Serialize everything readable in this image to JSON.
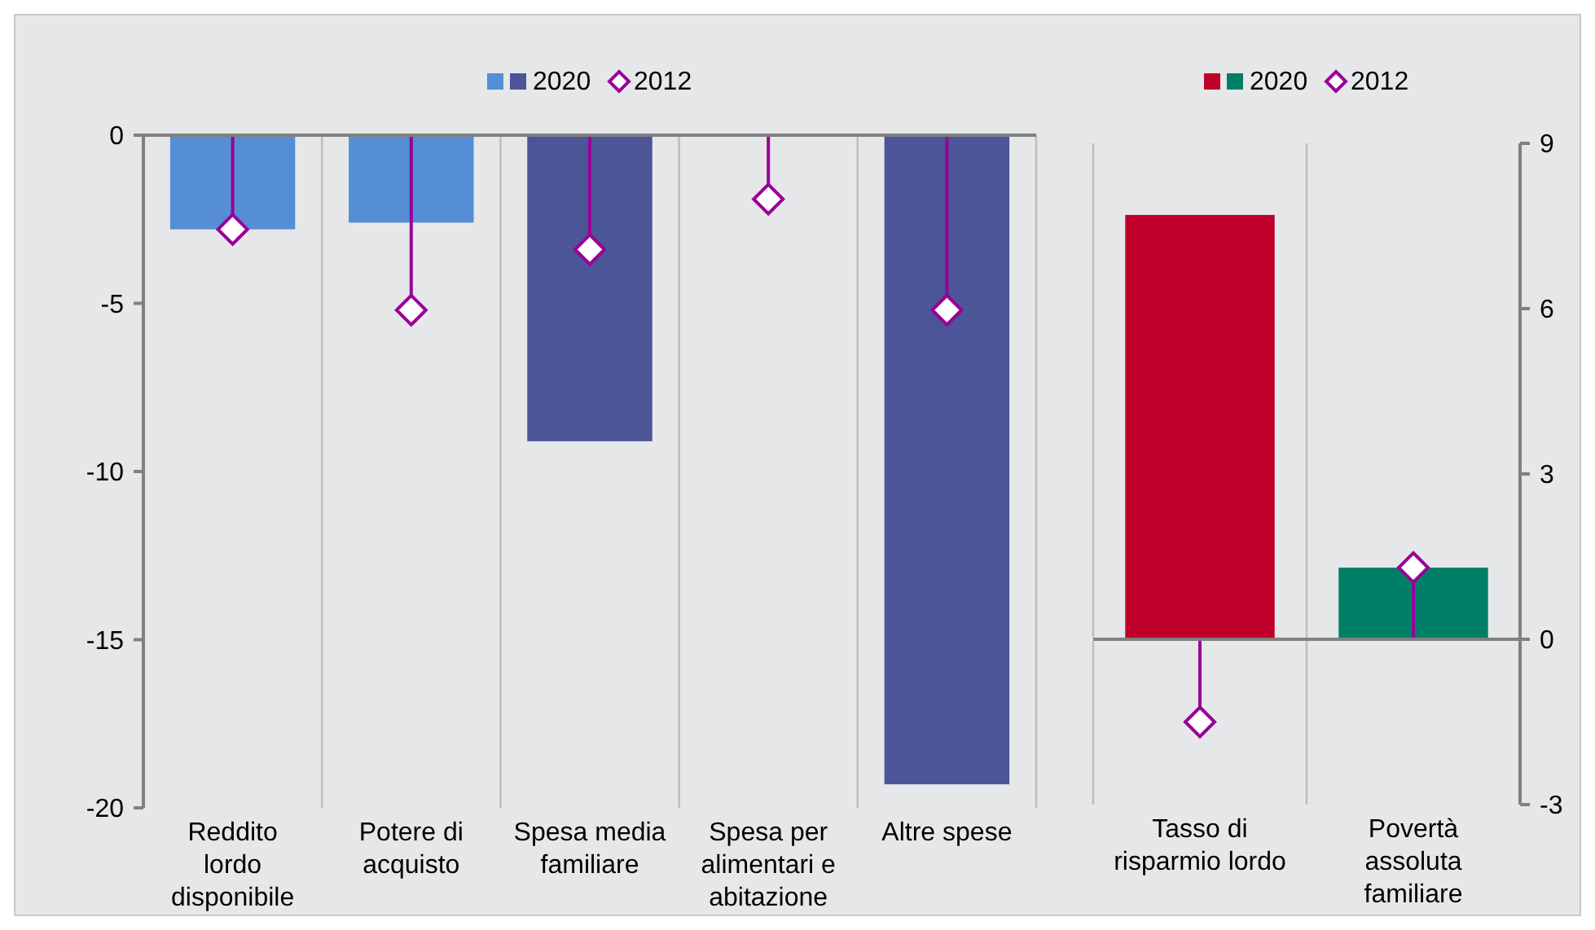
{
  "chart_data": [
    {
      "type": "bar",
      "categories": [
        "Reddito lordo disponibile",
        "Potere di acquisto",
        "Spesa media familiare",
        "Spesa per alimentari e abitazione",
        "Altre spese"
      ],
      "ylim": [
        -20,
        0
      ],
      "yticks": [
        -20,
        -15,
        -10,
        -5,
        0
      ],
      "legend": "top",
      "series": [
        {
          "name": "2020",
          "colors": [
            "#558ed5",
            "#558ed5",
            "#4b5597",
            null,
            "#4b5597"
          ],
          "values": [
            -2.8,
            -2.6,
            -9.1,
            null,
            -19.3
          ]
        },
        {
          "name": "2012",
          "type": "lollipop",
          "marker": "diamond",
          "color": "#990099",
          "values": [
            -2.8,
            -5.2,
            -3.4,
            -1.9,
            -5.2
          ]
        }
      ]
    },
    {
      "type": "bar",
      "categories": [
        "Tasso di risparmio lordo",
        "Povertà assoluta familiare"
      ],
      "y2lim": [
        -3,
        9
      ],
      "y2ticks": [
        -3,
        0,
        3,
        6,
        9
      ],
      "legend": "top",
      "series": [
        {
          "name": "2020",
          "axis": "y2",
          "colors": [
            "#c0002a",
            "#007f67"
          ],
          "values": [
            7.7,
            1.3
          ]
        },
        {
          "name": "2012",
          "axis": "y2",
          "type": "lollipop",
          "marker": "diamond",
          "color": "#990099",
          "values": [
            -1.5,
            1.3
          ]
        }
      ]
    }
  ]
}
